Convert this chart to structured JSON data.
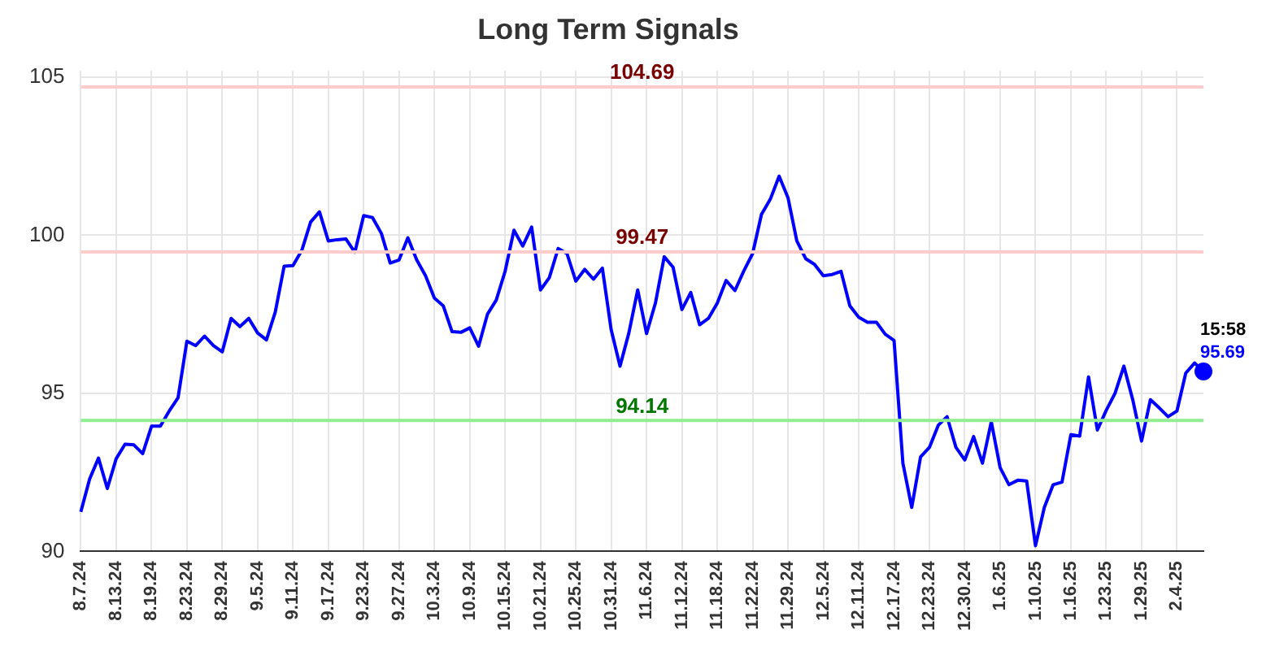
{
  "chart_data": {
    "type": "line",
    "title": "Long Term Signals",
    "categories": [
      "8.7.24",
      null,
      null,
      null,
      "8.13.24",
      null,
      null,
      null,
      "8.19.24",
      null,
      null,
      null,
      "8.23.24",
      null,
      null,
      null,
      "8.29.24",
      null,
      null,
      null,
      "9.5.24",
      null,
      null,
      null,
      "9.11.24",
      null,
      null,
      null,
      "9.17.24",
      null,
      null,
      null,
      "9.23.24",
      null,
      null,
      null,
      "9.27.24",
      null,
      null,
      null,
      "10.3.24",
      null,
      null,
      null,
      "10.9.24",
      null,
      null,
      null,
      "10.15.24",
      null,
      null,
      null,
      "10.21.24",
      null,
      null,
      null,
      "10.25.24",
      null,
      null,
      null,
      "10.31.24",
      null,
      null,
      null,
      "11.6.24",
      null,
      null,
      null,
      "11.12.24",
      null,
      null,
      null,
      "11.18.24",
      null,
      null,
      null,
      "11.22.24",
      null,
      null,
      null,
      "11.29.24",
      null,
      null,
      null,
      "12.5.24",
      null,
      null,
      null,
      "12.11.24",
      null,
      null,
      null,
      "12.17.24",
      null,
      null,
      null,
      "12.23.24",
      null,
      null,
      null,
      "12.30.24",
      null,
      null,
      null,
      "1.6.25",
      null,
      null,
      null,
      "1.10.25",
      null,
      null,
      null,
      "1.16.25",
      null,
      null,
      null,
      "1.23.25",
      null,
      null,
      null,
      "1.29.25",
      null,
      null,
      null,
      "2.4.25",
      null,
      null,
      null
    ],
    "series": [
      {
        "color": "#0000ff",
        "values": [
          91.25,
          92.29,
          92.95,
          91.99,
          92.93,
          93.39,
          93.37,
          93.09,
          93.96,
          93.96,
          94.44,
          94.86,
          96.65,
          96.51,
          96.81,
          96.51,
          96.31,
          97.37,
          97.11,
          97.37,
          96.91,
          96.69,
          97.57,
          99.02,
          99.04,
          99.52,
          100.42,
          100.74,
          99.82,
          99.86,
          99.88,
          99.46,
          100.62,
          100.56,
          100.06,
          99.12,
          99.22,
          99.92,
          99.22,
          98.72,
          98.01,
          97.77,
          96.95,
          96.93,
          97.07,
          96.49,
          97.5,
          97.95,
          98.86,
          100.16,
          99.66,
          100.26,
          98.27,
          98.66,
          99.58,
          99.42,
          98.55,
          98.92,
          98.61,
          98.96,
          97.01,
          95.86,
          96.91,
          98.27,
          96.89,
          97.85,
          99.32,
          98.99,
          97.65,
          98.19,
          97.17,
          97.37,
          97.85,
          98.57,
          98.25,
          98.87,
          99.42,
          100.66,
          101.14,
          101.87,
          101.19,
          99.82,
          99.26,
          99.08,
          98.72,
          98.76,
          98.86,
          97.77,
          97.41,
          97.25,
          97.25,
          96.87,
          96.67,
          92.79,
          91.39,
          92.99,
          93.29,
          93.99,
          94.26,
          93.29,
          92.89,
          93.63,
          92.79,
          94.1,
          92.65,
          92.11,
          92.25,
          92.23,
          90.18,
          91.39,
          92.11,
          92.19,
          93.69,
          93.65,
          95.52,
          93.84,
          94.46,
          95.0,
          95.86,
          94.8,
          93.49,
          94.8,
          94.54,
          94.26,
          94.44,
          95.64,
          95.96,
          95.69
        ],
        "value_labels": [
          null,
          null,
          null,
          null,
          null,
          null,
          null,
          null,
          null,
          null,
          null,
          null,
          null,
          null,
          null,
          null,
          null,
          null,
          null,
          null,
          null,
          null,
          null,
          null,
          null,
          null,
          null,
          null,
          null,
          null,
          null,
          null,
          null,
          null,
          null,
          null,
          null,
          null,
          null,
          null,
          null,
          null,
          null,
          null,
          null,
          null,
          null,
          null,
          null,
          null,
          null,
          null,
          null,
          null,
          null,
          null,
          null,
          null,
          null,
          null,
          null,
          null,
          null,
          null,
          null,
          null,
          null,
          null,
          null,
          null,
          null,
          null,
          null,
          null,
          null,
          null,
          null,
          null,
          null,
          null,
          null,
          null,
          null,
          null,
          null,
          null,
          null,
          null,
          null,
          null,
          null,
          null,
          null,
          null,
          null,
          null,
          null,
          null,
          null,
          null,
          null,
          null,
          null,
          null,
          null,
          null,
          null,
          null,
          null,
          null,
          null,
          null,
          null,
          null,
          null,
          null,
          null,
          null,
          null,
          null,
          null,
          null,
          null,
          null,
          null,
          null,
          null,
          "95.69"
        ]
      }
    ],
    "ylim": [
      90,
      105.2
    ],
    "yticks": [
      90,
      95,
      100,
      105
    ],
    "grid": true,
    "legend": false,
    "marker": "none",
    "line_style": "solid",
    "ref_lines": [
      {
        "axis": "y",
        "value": 104.69,
        "label": "104.69",
        "color": "#ffcccc"
      },
      {
        "axis": "y",
        "value": 99.47,
        "label": "99.47",
        "color": "#ffcccc"
      },
      {
        "axis": "y",
        "value": 94.14,
        "label": "94.14",
        "color": "#90ee90"
      }
    ],
    "annotations": [
      "15:58"
    ]
  }
}
